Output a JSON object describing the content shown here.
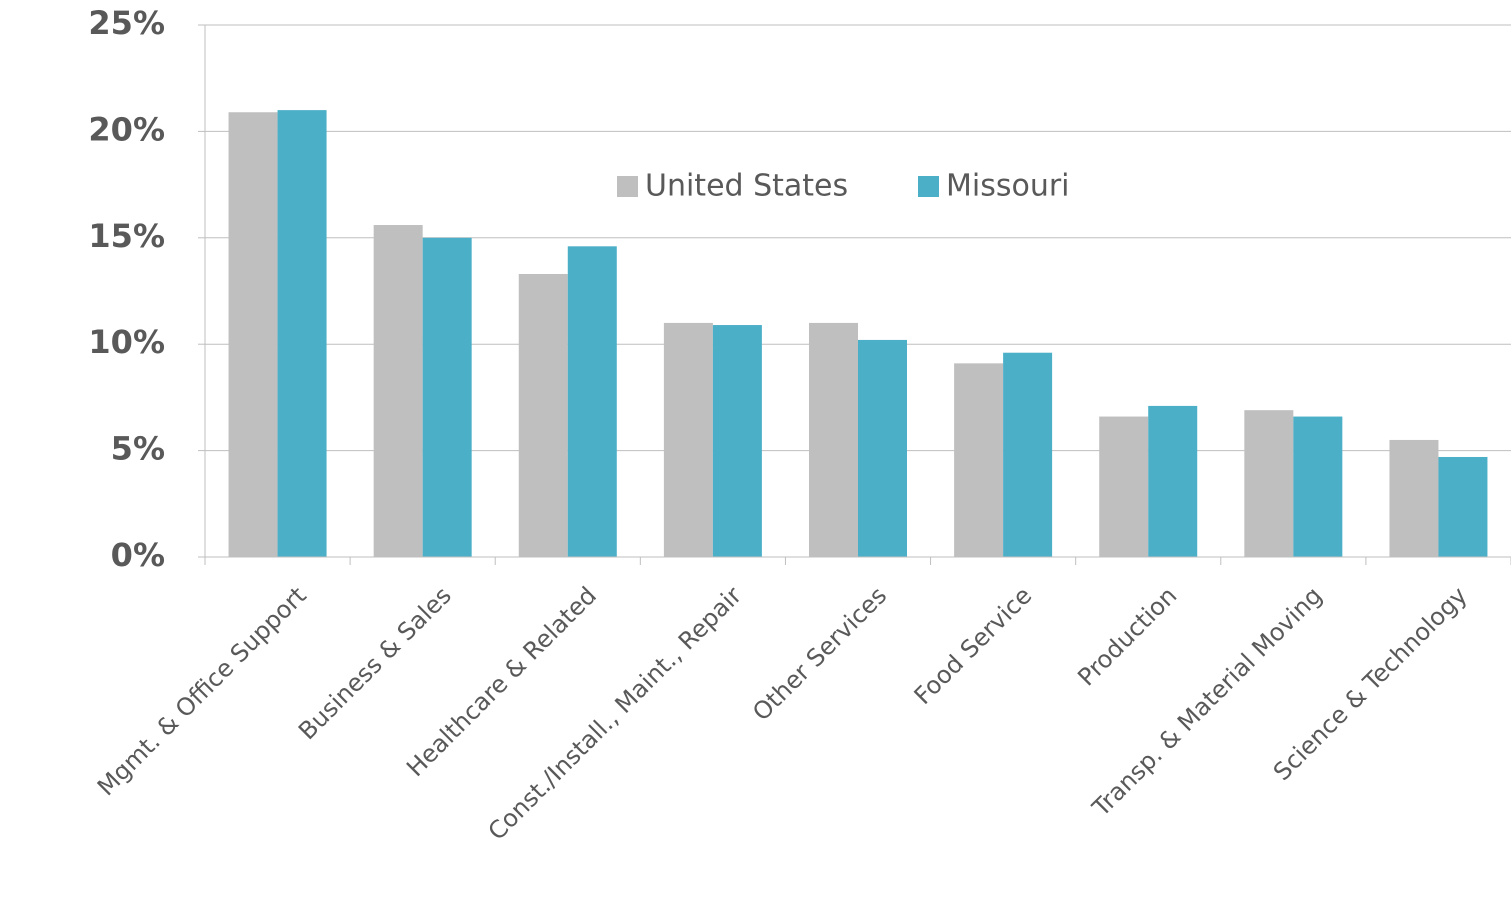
{
  "chart_data": {
    "type": "bar",
    "categories": [
      "Mgmt. & Office Support",
      "Business & Sales",
      "Healthcare & Related",
      "Const./Install., Maint., Repair",
      "Other Services",
      "Food Service",
      "Production",
      "Transp. & Material Moving",
      "Science & Technology"
    ],
    "series": [
      {
        "name": "United States",
        "color": "#bfbfbf",
        "values": [
          20.9,
          15.6,
          13.3,
          11.0,
          11.0,
          9.1,
          6.6,
          6.9,
          5.5
        ]
      },
      {
        "name": "Missouri",
        "color": "#4bafc8",
        "values": [
          21.0,
          15.0,
          14.6,
          10.9,
          10.2,
          9.6,
          7.1,
          6.6,
          4.7
        ]
      }
    ],
    "ylim": [
      0,
      25
    ],
    "yticks": [
      {
        "value": 0,
        "label": "0%"
      },
      {
        "value": 5,
        "label": "5%"
      },
      {
        "value": 10,
        "label": "10%"
      },
      {
        "value": 15,
        "label": "15%"
      },
      {
        "value": 20,
        "label": "20%"
      },
      {
        "value": 25,
        "label": "25%"
      }
    ],
    "grid": true
  }
}
